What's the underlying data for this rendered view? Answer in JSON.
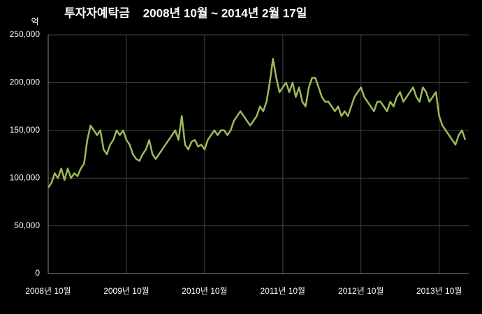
{
  "chart_data": {
    "type": "line",
    "title": "투자자예탁금    2008년 10월 ~ 2014년 2월 17일",
    "y_unit": "억",
    "categories": [
      "2008년 10월",
      null,
      null,
      null,
      null,
      null,
      null,
      null,
      null,
      null,
      null,
      null,
      null,
      null,
      null,
      null,
      null,
      null,
      null,
      null,
      null,
      null,
      null,
      null,
      "2009년 10월",
      null,
      null,
      null,
      null,
      null,
      null,
      null,
      null,
      null,
      null,
      null,
      null,
      null,
      null,
      null,
      null,
      null,
      null,
      null,
      null,
      null,
      null,
      null,
      "2010년 10월",
      null,
      null,
      null,
      null,
      null,
      null,
      null,
      null,
      null,
      null,
      null,
      null,
      null,
      null,
      null,
      null,
      null,
      null,
      null,
      null,
      null,
      null,
      null,
      "2011년 10월",
      null,
      null,
      null,
      null,
      null,
      null,
      null,
      null,
      null,
      null,
      null,
      null,
      null,
      null,
      null,
      null,
      null,
      null,
      null,
      null,
      null,
      null,
      null,
      "2012년 10월",
      null,
      null,
      null,
      null,
      null,
      null,
      null,
      null,
      null,
      null,
      null,
      null,
      null,
      null,
      null,
      null,
      null,
      null,
      null,
      null,
      null,
      null,
      null,
      "2013년 10월",
      null,
      null,
      null,
      null,
      null,
      null,
      null,
      null
    ],
    "series": [
      {
        "color": "#9bbb59",
        "values": [
          90000,
          95000,
          105000,
          100000,
          110000,
          98000,
          110000,
          100000,
          105000,
          102000,
          110000,
          115000,
          140000,
          155000,
          150000,
          145000,
          150000,
          130000,
          125000,
          135000,
          140000,
          150000,
          145000,
          150000,
          140000,
          135000,
          125000,
          120000,
          118000,
          125000,
          130000,
          140000,
          125000,
          120000,
          125000,
          130000,
          135000,
          140000,
          145000,
          150000,
          140000,
          165000,
          135000,
          130000,
          138000,
          140000,
          133000,
          135000,
          130000,
          140000,
          145000,
          150000,
          145000,
          150000,
          150000,
          145000,
          150000,
          160000,
          165000,
          170000,
          165000,
          160000,
          155000,
          160000,
          165000,
          175000,
          170000,
          180000,
          200000,
          225000,
          205000,
          190000,
          195000,
          200000,
          190000,
          200000,
          185000,
          195000,
          180000,
          175000,
          195000,
          205000,
          205000,
          195000,
          185000,
          180000,
          180000,
          175000,
          170000,
          175000,
          165000,
          170000,
          165000,
          175000,
          185000,
          190000,
          195000,
          185000,
          180000,
          175000,
          170000,
          180000,
          180000,
          175000,
          170000,
          180000,
          175000,
          185000,
          190000,
          180000,
          185000,
          190000,
          195000,
          185000,
          180000,
          195000,
          190000,
          180000,
          185000,
          190000,
          165000,
          155000,
          150000,
          145000,
          140000,
          135000,
          145000,
          150000,
          140000
        ]
      }
    ],
    "ylim": [
      0,
      250000
    ],
    "yticks": [
      0,
      {
        "value": 50000,
        "label": "50,000"
      },
      {
        "value": 100000,
        "label": "100,000"
      },
      {
        "value": 150000,
        "label": "150,000"
      },
      {
        "value": 200000,
        "label": "200,000"
      },
      {
        "value": 250000,
        "label": "250,000"
      }
    ],
    "grid": true
  }
}
